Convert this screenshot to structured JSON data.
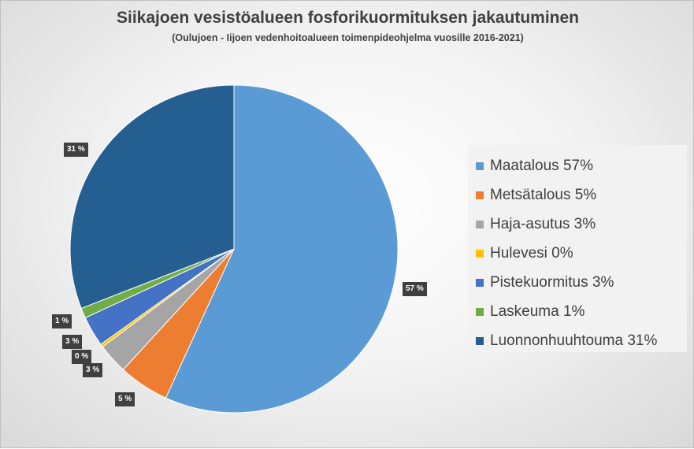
{
  "chart_data": {
    "type": "pie",
    "title": "Siikajoen vesistöalueen fosforikuormituksen jakautuminen",
    "subtitle": "(Oulujoen - Iijoen vedenhoitoalueen toimenpideohjelma vuosille 2016-2021)",
    "legend_position": "right",
    "slices": [
      {
        "label": "Maatalous 57%",
        "value": 57,
        "data_label": "57 %",
        "color": "#5b9bd5"
      },
      {
        "label": "Metsätalous 5%",
        "value": 5,
        "data_label": "5 %",
        "color": "#ed7d31"
      },
      {
        "label": "Haja-asutus 3%",
        "value": 3,
        "data_label": "3 %",
        "color": "#a5a5a5"
      },
      {
        "label": "Hulevesi 0%",
        "value": 0.3,
        "data_label": "0 %",
        "color": "#ffc000"
      },
      {
        "label": "Pistekuormitus 3%",
        "value": 3,
        "data_label": "3 %",
        "color": "#4472c4"
      },
      {
        "label": "Laskeuma 1%",
        "value": 1,
        "data_label": "1 %",
        "color": "#70ad47"
      },
      {
        "label": "Luonnonhuuhtouma 31%",
        "value": 31,
        "data_label": "31 %",
        "color": "#255e91"
      }
    ]
  }
}
